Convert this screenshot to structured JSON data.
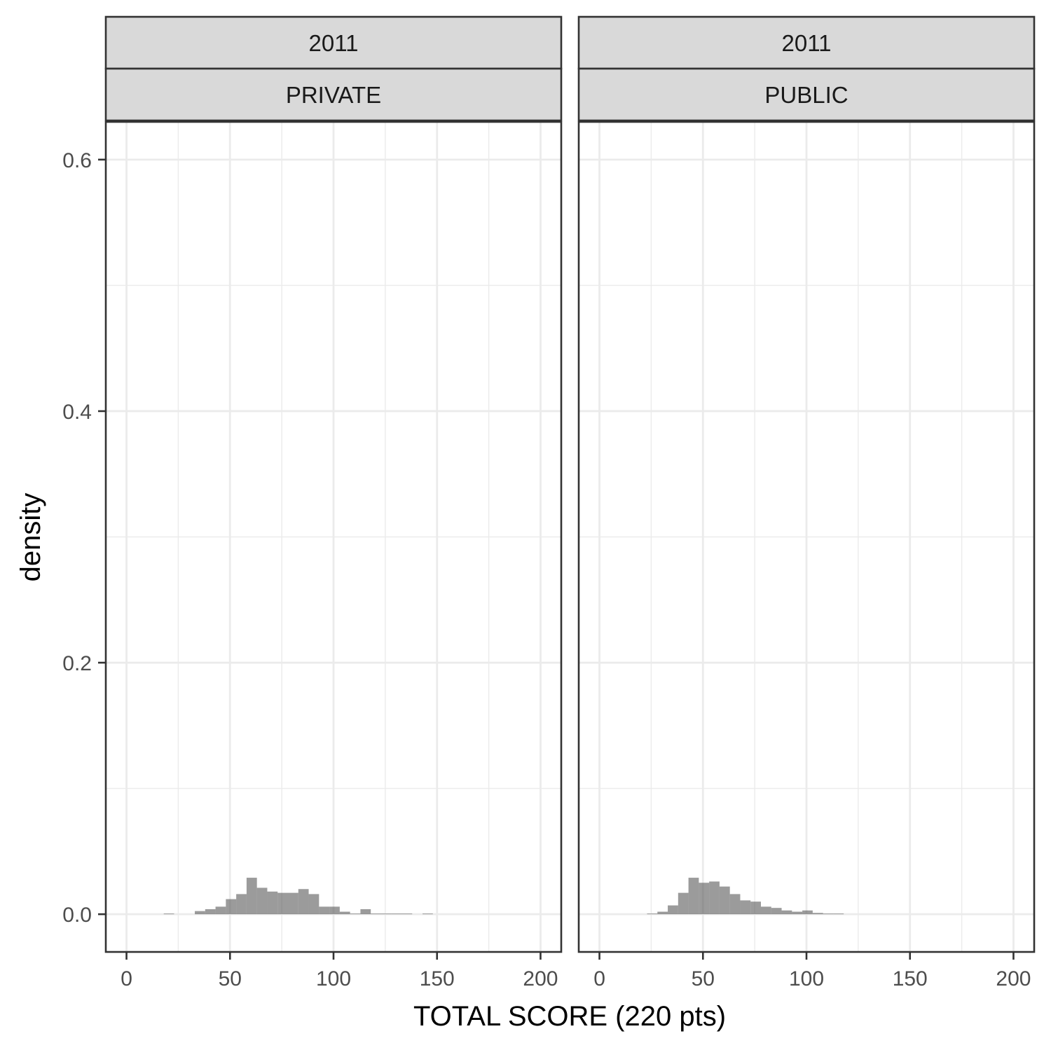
{
  "chart_data": {
    "type": "bar",
    "xlabel": "TOTAL SCORE (220 pts)",
    "ylabel": "density",
    "xlim": [
      -10,
      210
    ],
    "ylim": [
      -0.03,
      0.63
    ],
    "x_ticks": [
      0,
      50,
      100,
      150,
      200
    ],
    "y_ticks": [
      0.0,
      0.2,
      0.4,
      0.6
    ],
    "y_tick_labels": [
      "0.0",
      "0.2",
      "0.4",
      "0.6"
    ],
    "grid": true,
    "bin_width": 5,
    "panels": [
      {
        "strip_top": "2011",
        "strip_bottom": "PRIVATE",
        "bins": [
          {
            "x0": 18,
            "x1": 23,
            "density": 0.0005
          },
          {
            "x0": 33,
            "x1": 38,
            "density": 0.0025
          },
          {
            "x0": 38,
            "x1": 43,
            "density": 0.004
          },
          {
            "x0": 43,
            "x1": 48,
            "density": 0.006
          },
          {
            "x0": 48,
            "x1": 53,
            "density": 0.012
          },
          {
            "x0": 53,
            "x1": 58,
            "density": 0.016
          },
          {
            "x0": 58,
            "x1": 63,
            "density": 0.029
          },
          {
            "x0": 63,
            "x1": 68,
            "density": 0.021
          },
          {
            "x0": 68,
            "x1": 73,
            "density": 0.018
          },
          {
            "x0": 73,
            "x1": 78,
            "density": 0.017
          },
          {
            "x0": 78,
            "x1": 83,
            "density": 0.017
          },
          {
            "x0": 83,
            "x1": 88,
            "density": 0.02
          },
          {
            "x0": 88,
            "x1": 93,
            "density": 0.016
          },
          {
            "x0": 93,
            "x1": 98,
            "density": 0.006
          },
          {
            "x0": 98,
            "x1": 103,
            "density": 0.006
          },
          {
            "x0": 103,
            "x1": 108,
            "density": 0.002
          },
          {
            "x0": 108,
            "x1": 113,
            "density": 0.0005
          },
          {
            "x0": 113,
            "x1": 118,
            "density": 0.004
          },
          {
            "x0": 118,
            "x1": 123,
            "density": 0.0005
          },
          {
            "x0": 123,
            "x1": 128,
            "density": 0.0005
          },
          {
            "x0": 128,
            "x1": 133,
            "density": 0.0005
          },
          {
            "x0": 133,
            "x1": 138,
            "density": 0.0005
          },
          {
            "x0": 143,
            "x1": 148,
            "density": 0.0005
          }
        ]
      },
      {
        "strip_top": "2011",
        "strip_bottom": "PUBLIC",
        "bins": [
          {
            "x0": 23,
            "x1": 28,
            "density": 0.0005
          },
          {
            "x0": 28,
            "x1": 33,
            "density": 0.002
          },
          {
            "x0": 33,
            "x1": 38,
            "density": 0.007
          },
          {
            "x0": 38,
            "x1": 43,
            "density": 0.017
          },
          {
            "x0": 43,
            "x1": 48,
            "density": 0.029
          },
          {
            "x0": 48,
            "x1": 53,
            "density": 0.025
          },
          {
            "x0": 53,
            "x1": 58,
            "density": 0.026
          },
          {
            "x0": 58,
            "x1": 63,
            "density": 0.022
          },
          {
            "x0": 63,
            "x1": 68,
            "density": 0.016
          },
          {
            "x0": 68,
            "x1": 73,
            "density": 0.011
          },
          {
            "x0": 73,
            "x1": 78,
            "density": 0.01
          },
          {
            "x0": 78,
            "x1": 83,
            "density": 0.006
          },
          {
            "x0": 83,
            "x1": 88,
            "density": 0.005
          },
          {
            "x0": 88,
            "x1": 93,
            "density": 0.003
          },
          {
            "x0": 93,
            "x1": 98,
            "density": 0.002
          },
          {
            "x0": 98,
            "x1": 103,
            "density": 0.003
          },
          {
            "x0": 103,
            "x1": 108,
            "density": 0.001
          },
          {
            "x0": 108,
            "x1": 113,
            "density": 0.0005
          },
          {
            "x0": 113,
            "x1": 118,
            "density": 0.0005
          }
        ]
      }
    ]
  }
}
